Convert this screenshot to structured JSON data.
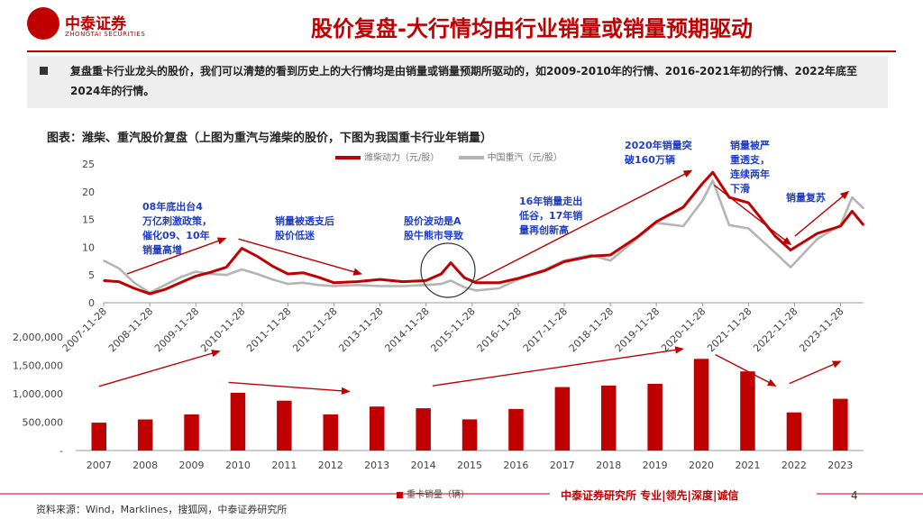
{
  "header": {
    "logo_name": "中泰证券",
    "logo_sub": "ZHONGTAI SECURITIES",
    "title": "股价复盘-大行情均由行业销量或销量预期驱动"
  },
  "summary": "复盘重卡行业龙头的股价，我们可以清楚的看到历史上的大行情均是由销量或销量预期所驱动的，如2009-2010年的行情、2016-2021年初的行情、2022年底至2024年的行情。",
  "figure_title": "图表：潍柴、重汽股价复盘（上图为重汽与潍柴的股价，下图为我国重卡行业年销量）",
  "notes": {
    "n1": "08年底出台4\n万亿刺激政策，\n催化09、10年\n销量高增",
    "n2": "销量被透支后\n股价低迷",
    "n3": "股价波动是A\n股牛熊市导致",
    "n4": "16年销量走出\n低谷，17年销\n量再创新高",
    "n5": "2020年销量突\n破160万辆",
    "n6": "销量被严\n重透支，\n连续两年\n下滑",
    "n7": "销量复苏"
  },
  "footer": {
    "brand": "中泰证券研究所 专业|领先|深度|诚信",
    "page": "4",
    "source": "资料来源：Wind，Marklines，搜狐网，中泰证券研究所"
  },
  "colors": {
    "red": "#c00000",
    "gray": "#b4b4b4",
    "note_blue": "#1f3ec8"
  },
  "chart_data": [
    {
      "type": "line",
      "title": "",
      "ylim": [
        0,
        25
      ],
      "yticks": [
        0,
        5,
        10,
        15,
        20,
        25
      ],
      "xlim": [
        "2007-11-28",
        "2024-05-28"
      ],
      "xticks": [
        "2007-11-28",
        "2008-11-28",
        "2009-11-28",
        "2010-11-28",
        "2011-11-28",
        "2012-11-28",
        "2013-11-28",
        "2014-11-28",
        "2015-11-28",
        "2016-11-28",
        "2017-11-28",
        "2018-11-28",
        "2019-11-28",
        "2020-11-28",
        "2021-11-28",
        "2022-11-28",
        "2023-11-28"
      ],
      "legend_position": "top",
      "series": [
        {
          "name": "潍柴动力（元/股）",
          "color": "#c00000",
          "x": [
            "2007-11-28",
            "2008-03-28",
            "2008-07-28",
            "2008-11-28",
            "2009-03-28",
            "2009-07-28",
            "2009-11-28",
            "2010-03-28",
            "2010-07-28",
            "2010-11-28",
            "2011-03-28",
            "2011-07-28",
            "2011-11-28",
            "2012-03-28",
            "2012-07-28",
            "2012-11-28",
            "2013-05-28",
            "2013-11-28",
            "2014-05-28",
            "2014-11-28",
            "2015-03-28",
            "2015-06-12",
            "2015-09-28",
            "2015-12-28",
            "2016-06-28",
            "2016-11-28",
            "2017-06-28",
            "2017-11-28",
            "2018-06-28",
            "2018-11-28",
            "2019-06-28",
            "2019-11-28",
            "2020-06-28",
            "2020-11-28",
            "2021-02-18",
            "2021-06-28",
            "2021-11-28",
            "2022-06-28",
            "2022-10-28",
            "2023-05-28",
            "2023-11-28",
            "2024-02-28",
            "2024-05-28"
          ],
          "values": [
            4.0,
            3.8,
            2.6,
            1.6,
            2.4,
            3.6,
            4.8,
            5.5,
            6.4,
            9.8,
            8.4,
            6.6,
            5.2,
            5.4,
            4.6,
            3.6,
            3.8,
            4.2,
            3.8,
            4.0,
            5.2,
            7.2,
            4.5,
            3.6,
            3.6,
            4.4,
            5.8,
            7.4,
            8.4,
            8.6,
            11.8,
            14.6,
            17.2,
            21.5,
            23.5,
            19.0,
            18.0,
            12.0,
            9.5,
            12.5,
            13.8,
            16.5,
            14.0
          ]
        },
        {
          "name": "中国重汽（元/股）",
          "color": "#b4b4b4",
          "x": [
            "2007-11-28",
            "2008-03-28",
            "2008-07-28",
            "2008-11-28",
            "2009-03-28",
            "2009-07-28",
            "2009-11-28",
            "2010-03-28",
            "2010-07-28",
            "2010-11-28",
            "2011-03-28",
            "2011-07-28",
            "2011-11-28",
            "2012-03-28",
            "2012-07-28",
            "2012-11-28",
            "2013-05-28",
            "2013-11-28",
            "2014-05-28",
            "2014-11-28",
            "2015-03-28",
            "2015-06-12",
            "2015-09-28",
            "2015-12-28",
            "2016-06-28",
            "2016-11-28",
            "2017-06-28",
            "2017-11-28",
            "2018-06-28",
            "2018-11-28",
            "2019-06-28",
            "2019-11-28",
            "2020-06-28",
            "2020-11-28",
            "2021-02-18",
            "2021-06-28",
            "2021-11-28",
            "2022-06-28",
            "2022-10-28",
            "2023-05-28",
            "2023-11-28",
            "2024-02-28",
            "2024-05-28"
          ],
          "values": [
            7.6,
            6.2,
            3.6,
            1.8,
            3.2,
            4.6,
            5.6,
            5.2,
            5.0,
            6.0,
            5.2,
            4.2,
            3.4,
            3.6,
            3.2,
            3.0,
            3.2,
            3.0,
            3.0,
            3.2,
            3.4,
            4.0,
            2.8,
            2.2,
            2.6,
            4.2,
            6.0,
            7.6,
            8.6,
            7.6,
            11.6,
            14.4,
            13.8,
            18.4,
            22.0,
            14.0,
            13.4,
            9.0,
            6.4,
            11.5,
            14.0,
            19.0,
            17.0
          ]
        }
      ]
    },
    {
      "type": "bar",
      "title": "",
      "categories": [
        "2007",
        "2008",
        "2009",
        "2010",
        "2011",
        "2012",
        "2013",
        "2014",
        "2015",
        "2016",
        "2017",
        "2018",
        "2019",
        "2020",
        "2021",
        "2022",
        "2023"
      ],
      "series": [
        {
          "name": "重卡销量（辆）",
          "color": "#c00000",
          "values": [
            490000,
            548000,
            636000,
            1017000,
            877000,
            636000,
            774000,
            744000,
            550000,
            732000,
            1117000,
            1145000,
            1174000,
            1614000,
            1393000,
            672000,
            911000
          ]
        }
      ],
      "ylim": [
        0,
        2000000
      ],
      "yticks": [
        "-",
        "500,000",
        "1,000,000",
        "1,500,000",
        "2,000,000"
      ],
      "legend_position": "bottom"
    }
  ]
}
